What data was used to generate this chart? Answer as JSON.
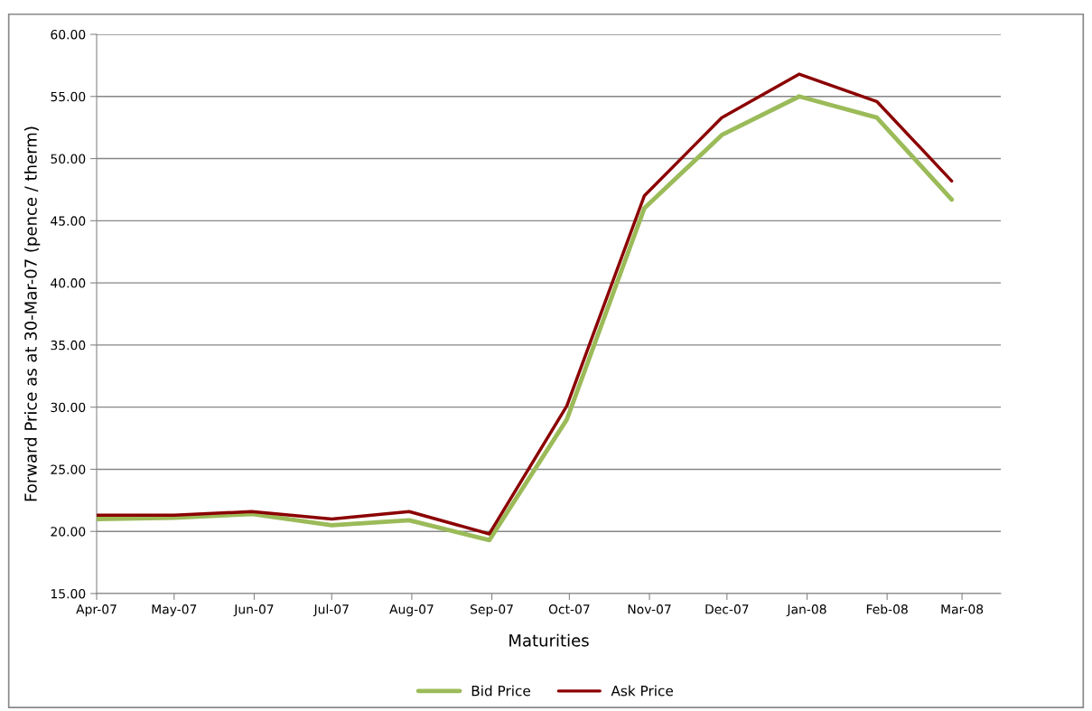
{
  "chart_data": {
    "type": "line",
    "xlabel": "Maturities",
    "ylabel": "Forward Price as at 30-Mar-07 (pence / therm)",
    "x": [
      "2007-04-01",
      "2007-05-01",
      "2007-05-31",
      "2007-07-01",
      "2007-07-31",
      "2007-08-31",
      "2007-09-30",
      "2007-10-30",
      "2007-11-29",
      "2007-12-29",
      "2008-01-28",
      "2008-02-26"
    ],
    "series": [
      {
        "name": "Bid Price",
        "color": "#9bbb59",
        "values": [
          21.0,
          21.1,
          21.4,
          20.5,
          20.9,
          19.3,
          29.0,
          46.0,
          51.9,
          55.0,
          53.3,
          46.7
        ]
      },
      {
        "name": "Ask Price",
        "color": "#8b0000",
        "values": [
          21.3,
          21.3,
          21.6,
          21.0,
          21.6,
          19.8,
          30.1,
          47.0,
          53.3,
          56.8,
          54.6,
          48.2
        ]
      }
    ],
    "xlim": [
      "2007-04-01",
      "2008-03-16"
    ],
    "xticks": [
      {
        "value": "2007-04-01",
        "label": "Apr-07"
      },
      {
        "value": "2007-05-01",
        "label": "May-07"
      },
      {
        "value": "2007-06-01",
        "label": "Jun-07"
      },
      {
        "value": "2007-07-01",
        "label": "Jul-07"
      },
      {
        "value": "2007-08-01",
        "label": "Aug-07"
      },
      {
        "value": "2007-09-01",
        "label": "Sep-07"
      },
      {
        "value": "2007-10-01",
        "label": "Oct-07"
      },
      {
        "value": "2007-11-01",
        "label": "Nov-07"
      },
      {
        "value": "2007-12-01",
        "label": "Dec-07"
      },
      {
        "value": "2008-01-01",
        "label": "Jan-08"
      },
      {
        "value": "2008-02-01",
        "label": "Feb-08"
      },
      {
        "value": "2008-03-01",
        "label": "Mar-08"
      }
    ],
    "ylim": [
      15,
      60
    ],
    "yticks": [
      {
        "value": 15,
        "label": "15.00"
      },
      {
        "value": 20,
        "label": "20.00"
      },
      {
        "value": 25,
        "label": "25.00"
      },
      {
        "value": 30,
        "label": "30.00"
      },
      {
        "value": 35,
        "label": "35.00"
      },
      {
        "value": 40,
        "label": "40.00"
      },
      {
        "value": 45,
        "label": "45.00"
      },
      {
        "value": 50,
        "label": "50.00"
      },
      {
        "value": 55,
        "label": "55.00"
      },
      {
        "value": 60,
        "label": "60.00"
      }
    ],
    "grid": "y",
    "legend": "bottom",
    "marker": "none",
    "line_style": "solid"
  }
}
